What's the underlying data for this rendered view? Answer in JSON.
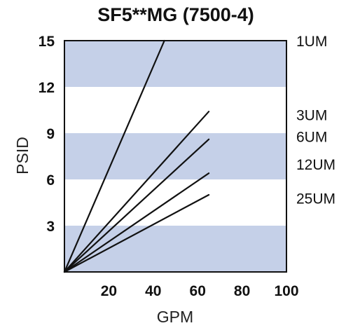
{
  "chart_data": {
    "type": "line",
    "title": "SF5**MG (7500-4)",
    "xlabel": "GPM",
    "ylabel": "PSID",
    "xlim": [
      0,
      100
    ],
    "ylim": [
      0,
      15
    ],
    "x_ticks": [
      "20",
      "40",
      "60",
      "80",
      "100"
    ],
    "y_ticks": [
      "3",
      "6",
      "9",
      "12",
      "15"
    ],
    "band_color": "#c5d0e8",
    "line_color": "#111111",
    "series": [
      {
        "name": "1UM",
        "x": [
          0,
          45
        ],
        "y": [
          0,
          15
        ]
      },
      {
        "name": "3UM",
        "x": [
          0,
          65
        ],
        "y": [
          0,
          10.4
        ]
      },
      {
        "name": "6UM",
        "x": [
          0,
          65
        ],
        "y": [
          0,
          8.6
        ]
      },
      {
        "name": "12UM",
        "x": [
          0,
          65
        ],
        "y": [
          0,
          6.4
        ]
      },
      {
        "name": "25UM",
        "x": [
          0,
          65
        ],
        "y": [
          0,
          5
        ]
      }
    ]
  }
}
